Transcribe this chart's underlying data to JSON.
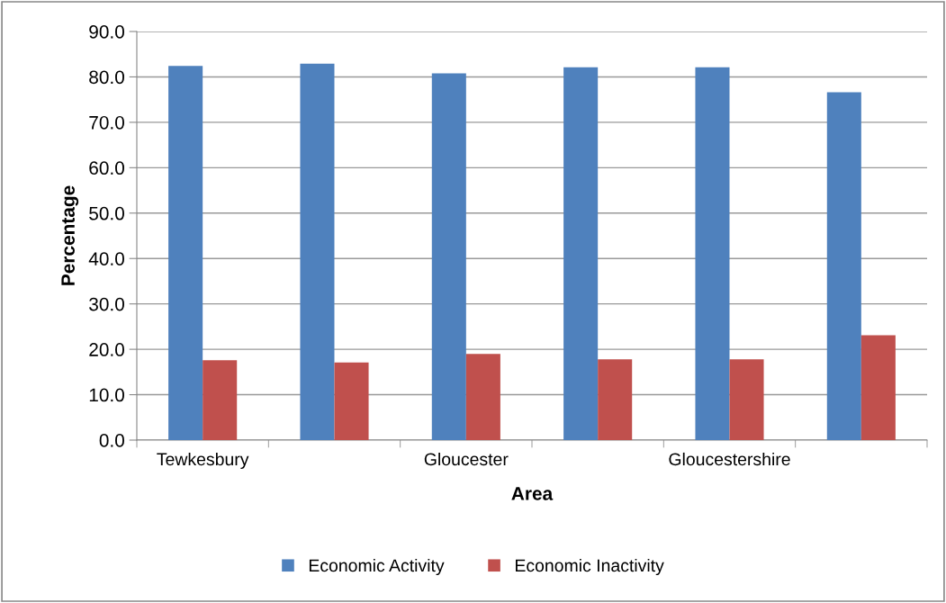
{
  "chart_data": {
    "type": "bar",
    "xlabel": "Area",
    "ylabel": "Percentage",
    "categories": [
      "Tewkesbury",
      null,
      "Gloucester",
      null,
      "Gloucestershire",
      null
    ],
    "series": [
      {
        "name": "Economic Activity",
        "color": "#4f81bd",
        "values": [
          82.4,
          82.9,
          80.8,
          82.1,
          82.1,
          76.6
        ]
      },
      {
        "name": "Economic Inactivity",
        "color": "#c0504d",
        "values": [
          17.6,
          17.1,
          19.0,
          17.8,
          17.8,
          23.1
        ]
      }
    ],
    "ylim": [
      0,
      90
    ],
    "yticks": [
      {
        "value": 0,
        "label": "0.0"
      },
      {
        "value": 10,
        "label": "10.0"
      },
      {
        "value": 20,
        "label": "20.0"
      },
      {
        "value": 30,
        "label": "30.0"
      },
      {
        "value": 40,
        "label": "40.0"
      },
      {
        "value": 50,
        "label": "50.0"
      },
      {
        "value": 60,
        "label": "60.0"
      },
      {
        "value": 70,
        "label": "70.0"
      },
      {
        "value": 80,
        "label": "80.0"
      },
      {
        "value": 90,
        "label": "90.0"
      }
    ],
    "grid": "y",
    "legend": "bottom"
  }
}
